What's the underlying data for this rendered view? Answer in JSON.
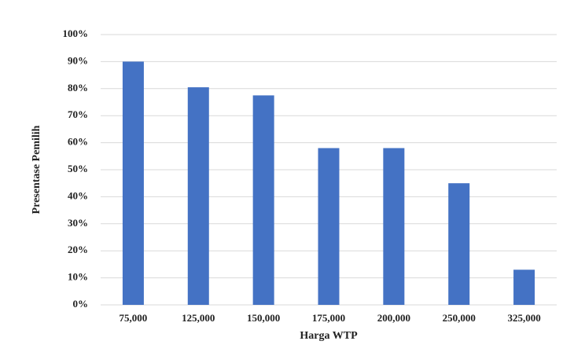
{
  "chart_data": {
    "type": "bar",
    "x_label": "Harga WTP",
    "y_label": "Presentase Pemilih",
    "categories": [
      "75,000",
      "125,000",
      "150,000",
      "175,000",
      "200,000",
      "250,000",
      "325,000"
    ],
    "values": [
      90,
      80.5,
      77.5,
      58,
      58,
      45,
      13
    ],
    "color": "#4472c4",
    "ylim": [
      0,
      100
    ],
    "yticks": [
      {
        "value": 0,
        "label": "0%"
      },
      {
        "value": 10,
        "label": "10%"
      },
      {
        "value": 20,
        "label": "20%"
      },
      {
        "value": 30,
        "label": "30%"
      },
      {
        "value": 40,
        "label": "40%"
      },
      {
        "value": 50,
        "label": "50%"
      },
      {
        "value": 60,
        "label": "60%"
      },
      {
        "value": 70,
        "label": "70%"
      },
      {
        "value": 80,
        "label": "80%"
      },
      {
        "value": 90,
        "label": "90%"
      },
      {
        "value": 100,
        "label": "100%"
      }
    ],
    "grid": true
  }
}
